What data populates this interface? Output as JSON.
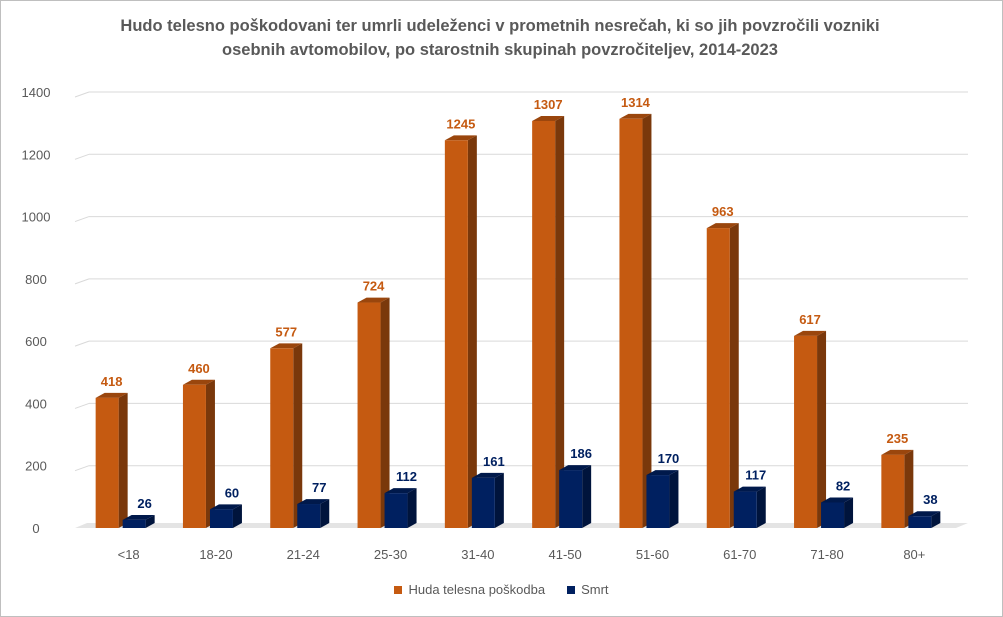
{
  "chart_data": {
    "type": "bar",
    "title_lines": [
      "Hudo telesno poškodovani ter umrli udeleženci v prometnih nesrečah, ki so jih povzročili vozniki",
      "osebnih avtomobilov, po starostnih skupinah povzročiteljev, 2014-2023"
    ],
    "categories": [
      "<18",
      "18-20",
      "21-24",
      "25-30",
      "31-40",
      "41-50",
      "51-60",
      "61-70",
      "71-80",
      "80+"
    ],
    "series": [
      {
        "name": "Huda telesna poškodba",
        "color": "#C55A11",
        "values": [
          418,
          460,
          577,
          724,
          1245,
          1307,
          1314,
          963,
          617,
          235
        ]
      },
      {
        "name": "Smrt",
        "color": "#002060",
        "values": [
          26,
          60,
          77,
          112,
          161,
          186,
          170,
          117,
          82,
          38
        ]
      }
    ],
    "ylim": [
      0,
      1400
    ],
    "y_ticks": [
      0,
      200,
      400,
      600,
      800,
      1000,
      1200,
      1400
    ],
    "grid": true,
    "legend_position": "bottom",
    "xlabel": "",
    "ylabel": ""
  }
}
